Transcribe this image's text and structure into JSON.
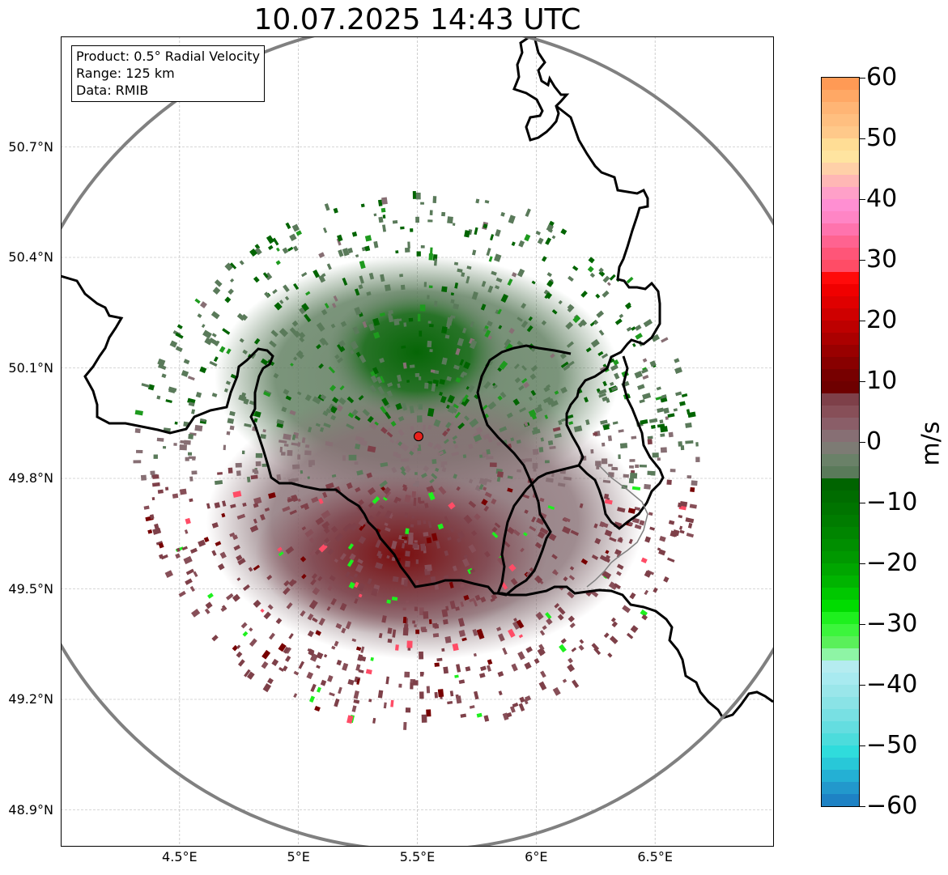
{
  "title": "10.07.2025 14:43 UTC",
  "info_box": {
    "product": "Product: 0.5° Radial Velocity",
    "range": "Range: 125 km",
    "data": "Data: RMIB"
  },
  "map": {
    "lon_range": [
      4.0,
      7.0
    ],
    "lat_range": [
      48.8,
      51.0
    ],
    "radar_site": {
      "lon": 5.505,
      "lat": 49.914
    },
    "range_km": 125,
    "lat_ticks": [
      {
        "value": 50.7,
        "label": "50.7°N"
      },
      {
        "value": 50.4,
        "label": "50.4°N"
      },
      {
        "value": 50.1,
        "label": "50.1°N"
      },
      {
        "value": 49.8,
        "label": "49.8°N"
      },
      {
        "value": 49.5,
        "label": "49.5°N"
      },
      {
        "value": 49.2,
        "label": "49.2°N"
      },
      {
        "value": 48.9,
        "label": "48.9°N"
      }
    ],
    "lon_ticks": [
      {
        "value": 4.5,
        "label": "4.5°E"
      },
      {
        "value": 5.0,
        "label": "5°E"
      },
      {
        "value": 5.5,
        "label": "5.5°E"
      },
      {
        "value": 6.0,
        "label": "6°E"
      },
      {
        "value": 6.5,
        "label": "6.5°E"
      }
    ],
    "colors": {
      "range_ring": "#808080",
      "border": "#000000",
      "grid": "#b0b0b0",
      "radar_marker": "#e8211c"
    }
  },
  "colorbar": {
    "unit": "m/s",
    "min": -60,
    "max": 60,
    "ticks": [
      {
        "value": 60,
        "label": "60"
      },
      {
        "value": 50,
        "label": "50"
      },
      {
        "value": 40,
        "label": "40"
      },
      {
        "value": 30,
        "label": "30"
      },
      {
        "value": 20,
        "label": "20"
      },
      {
        "value": 10,
        "label": "10"
      },
      {
        "value": 0,
        "label": "0"
      },
      {
        "value": -10,
        "label": "−10"
      },
      {
        "value": -20,
        "label": "−20"
      },
      {
        "value": -30,
        "label": "−30"
      },
      {
        "value": -40,
        "label": "−40"
      },
      {
        "value": -50,
        "label": "−50"
      },
      {
        "value": -60,
        "label": "−60"
      }
    ],
    "segments": [
      {
        "from": 58,
        "to": 60,
        "color": "#ff9a55"
      },
      {
        "from": 56,
        "to": 58,
        "color": "#ffa865"
      },
      {
        "from": 54,
        "to": 56,
        "color": "#ffb575"
      },
      {
        "from": 52,
        "to": 54,
        "color": "#ffbf80"
      },
      {
        "from": 50,
        "to": 52,
        "color": "#ffc98a"
      },
      {
        "from": 48,
        "to": 50,
        "color": "#ffdd95"
      },
      {
        "from": 46,
        "to": 48,
        "color": "#ffe4a0"
      },
      {
        "from": 44,
        "to": 46,
        "color": "#ffd0a8"
      },
      {
        "from": 42,
        "to": 44,
        "color": "#ffb7b5"
      },
      {
        "from": 40,
        "to": 42,
        "color": "#ffa0c8"
      },
      {
        "from": 38,
        "to": 40,
        "color": "#ff8fd2"
      },
      {
        "from": 36,
        "to": 38,
        "color": "#ff85c5"
      },
      {
        "from": 34,
        "to": 36,
        "color": "#ff73ad"
      },
      {
        "from": 32,
        "to": 34,
        "color": "#ff6390"
      },
      {
        "from": 30,
        "to": 32,
        "color": "#ff5578"
      },
      {
        "from": 28,
        "to": 30,
        "color": "#ff4c66"
      },
      {
        "from": 26,
        "to": 28,
        "color": "#ff0a0a"
      },
      {
        "from": 24,
        "to": 26,
        "color": "#f00000"
      },
      {
        "from": 22,
        "to": 24,
        "color": "#e00000"
      },
      {
        "from": 20,
        "to": 22,
        "color": "#cf0000"
      },
      {
        "from": 18,
        "to": 20,
        "color": "#bd0000"
      },
      {
        "from": 16,
        "to": 18,
        "color": "#ab0000"
      },
      {
        "from": 14,
        "to": 16,
        "color": "#990000"
      },
      {
        "from": 12,
        "to": 14,
        "color": "#880000"
      },
      {
        "from": 10,
        "to": 12,
        "color": "#770000"
      },
      {
        "from": 8,
        "to": 10,
        "color": "#6e0000"
      },
      {
        "from": 6,
        "to": 8,
        "color": "#7e4049"
      },
      {
        "from": 4,
        "to": 6,
        "color": "#874f58"
      },
      {
        "from": 2,
        "to": 4,
        "color": "#8a5e68"
      },
      {
        "from": 0,
        "to": 2,
        "color": "#876f74"
      },
      {
        "from": -2,
        "to": 0,
        "color": "#7d7b74"
      },
      {
        "from": -4,
        "to": -2,
        "color": "#6a8168"
      },
      {
        "from": -6,
        "to": -4,
        "color": "#5a7a5a"
      },
      {
        "from": -8,
        "to": -6,
        "color": "#006400"
      },
      {
        "from": -10,
        "to": -8,
        "color": "#006c00"
      },
      {
        "from": -12,
        "to": -10,
        "color": "#007400"
      },
      {
        "from": -14,
        "to": -12,
        "color": "#007c00"
      },
      {
        "from": -16,
        "to": -14,
        "color": "#008500"
      },
      {
        "from": -18,
        "to": -16,
        "color": "#008e00"
      },
      {
        "from": -20,
        "to": -18,
        "color": "#009800"
      },
      {
        "from": -22,
        "to": -20,
        "color": "#00a600"
      },
      {
        "from": -24,
        "to": -22,
        "color": "#00b400"
      },
      {
        "from": -26,
        "to": -24,
        "color": "#00c800"
      },
      {
        "from": -28,
        "to": -26,
        "color": "#00dc00"
      },
      {
        "from": -30,
        "to": -28,
        "color": "#1ef01e"
      },
      {
        "from": -32,
        "to": -30,
        "color": "#3cf53c"
      },
      {
        "from": -34,
        "to": -32,
        "color": "#5af05a"
      },
      {
        "from": -36,
        "to": -34,
        "color": "#8ef5a5"
      },
      {
        "from": -38,
        "to": -36,
        "color": "#b5ecf0"
      },
      {
        "from": -40,
        "to": -38,
        "color": "#a8eaf0"
      },
      {
        "from": -42,
        "to": -40,
        "color": "#9ae6ea"
      },
      {
        "from": -44,
        "to": -42,
        "color": "#8ae3e6"
      },
      {
        "from": -46,
        "to": -44,
        "color": "#78e0e3"
      },
      {
        "from": -48,
        "to": -46,
        "color": "#64dde0"
      },
      {
        "from": -50,
        "to": -48,
        "color": "#4cdcdc"
      },
      {
        "from": -52,
        "to": -50,
        "color": "#2fdcdc"
      },
      {
        "from": -54,
        "to": -52,
        "color": "#28c8d8"
      },
      {
        "from": -56,
        "to": -54,
        "color": "#24b0d4"
      },
      {
        "from": -58,
        "to": -56,
        "color": "#2298cc"
      },
      {
        "from": -60,
        "to": -58,
        "color": "#1e82c4"
      }
    ]
  }
}
